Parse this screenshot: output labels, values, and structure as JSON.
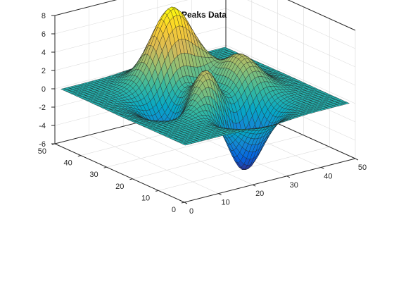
{
  "chart_data": {
    "type": "surface",
    "function": "peaks",
    "title": "Peaks Data",
    "xlabel": "",
    "ylabel": "",
    "zlabel": "",
    "grid_size": 49,
    "x_range": [
      1,
      49
    ],
    "y_range": [
      1,
      49
    ],
    "xlim": [
      0,
      50
    ],
    "ylim": [
      0,
      50
    ],
    "zlim": [
      -6,
      8
    ],
    "x_ticks": [
      0,
      10,
      20,
      30,
      40,
      50
    ],
    "y_ticks": [
      0,
      10,
      20,
      30,
      40,
      50
    ],
    "z_ticks": [
      -6,
      -4,
      -2,
      0,
      2,
      4,
      6,
      8
    ],
    "colormap": "parula",
    "colormap_colors": [
      "#352a87",
      "#0363e1",
      "#1485d4",
      "#06a7c6",
      "#38b99e",
      "#92bf73",
      "#d9ba56",
      "#fcce2e",
      "#f9fb0e"
    ],
    "grid": true,
    "box": true,
    "view": "3d-default"
  }
}
